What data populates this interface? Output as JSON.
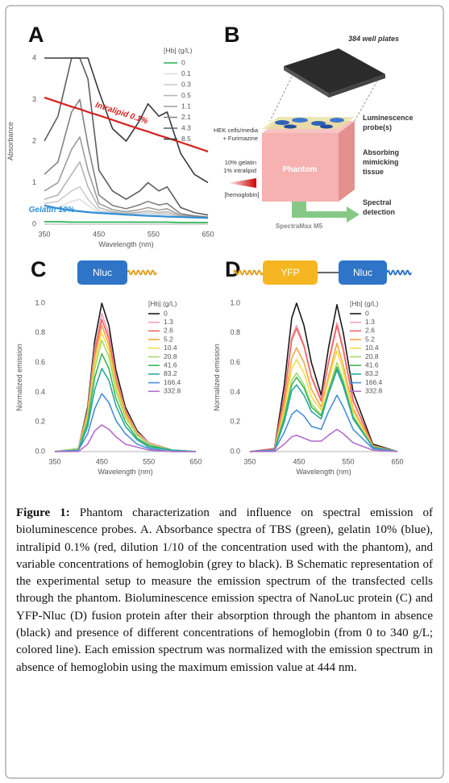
{
  "chart_data": [
    {
      "type": "line",
      "label": "A",
      "x_label": "Wavelength (nm)",
      "y_label": "Absorbance",
      "legend_title": "[Hb] (g/L)",
      "x": [
        350,
        375,
        400,
        415,
        430,
        450,
        475,
        500,
        525,
        540,
        560,
        575,
        600,
        625,
        650
      ],
      "xlim": [
        350,
        650
      ],
      "xticks": [
        350,
        450,
        550,
        650
      ],
      "ylim": [
        0,
        4
      ],
      "yticks": [
        0,
        1,
        2,
        3,
        4
      ],
      "series": [
        {
          "name": "0",
          "color": "#22b14c",
          "values": [
            0.06,
            0.06,
            0.05,
            0.05,
            0.05,
            0.05,
            0.05,
            0.05,
            0.05,
            0.05,
            0.05,
            0.05,
            0.04,
            0.04,
            0.04
          ]
        },
        {
          "name": "0.1",
          "color": "#e0e0e0",
          "values": [
            0.4,
            0.4,
            0.55,
            0.6,
            0.45,
            0.28,
            0.24,
            0.22,
            0.22,
            0.23,
            0.21,
            0.21,
            0.17,
            0.16,
            0.15
          ]
        },
        {
          "name": "0.3",
          "color": "#cccccc",
          "values": [
            0.5,
            0.55,
            0.8,
            0.9,
            0.6,
            0.32,
            0.27,
            0.24,
            0.25,
            0.27,
            0.24,
            0.25,
            0.18,
            0.16,
            0.15
          ]
        },
        {
          "name": "0.5",
          "color": "#b5b5b5",
          "values": [
            0.6,
            0.7,
            1.2,
            1.5,
            0.9,
            0.4,
            0.3,
            0.26,
            0.29,
            0.32,
            0.28,
            0.3,
            0.19,
            0.17,
            0.15
          ]
        },
        {
          "name": "1.1",
          "color": "#9c9c9c",
          "values": [
            0.8,
            1.0,
            1.8,
            2.1,
            1.3,
            0.5,
            0.35,
            0.3,
            0.35,
            0.4,
            0.34,
            0.37,
            0.21,
            0.18,
            0.16
          ]
        },
        {
          "name": "2.1",
          "color": "#838383",
          "values": [
            1.2,
            1.5,
            2.7,
            3.0,
            1.9,
            0.7,
            0.45,
            0.37,
            0.47,
            0.55,
            0.46,
            0.5,
            0.25,
            0.2,
            0.17
          ]
        },
        {
          "name": "4.3",
          "color": "#5e5e5e",
          "values": [
            2.0,
            2.6,
            4,
            4,
            3.5,
            1.3,
            0.8,
            0.6,
            0.8,
            1.0,
            0.8,
            0.9,
            0.4,
            0.28,
            0.22
          ]
        },
        {
          "name": "8.5",
          "color": "#3a3a3a",
          "values": [
            4,
            4,
            4,
            4,
            4,
            3.2,
            2.3,
            2.0,
            2.5,
            2.9,
            2.6,
            2.7,
            1.7,
            1.2,
            1.0
          ]
        }
      ],
      "reference_lines": [
        {
          "name": "Intralipid 0.1%",
          "color": "#d62020",
          "values": [
            3.05,
            2.94,
            2.83,
            2.77,
            2.7,
            2.62,
            2.51,
            2.4,
            2.29,
            2.23,
            2.14,
            2.08,
            1.97,
            1.86,
            1.75
          ]
        },
        {
          "name": "Gelatin 10%",
          "color": "#2f8fd8",
          "values": [
            0.45,
            0.38,
            0.33,
            0.31,
            0.29,
            0.27,
            0.25,
            0.23,
            0.21,
            0.2,
            0.19,
            0.18,
            0.17,
            0.16,
            0.15
          ]
        }
      ]
    },
    {
      "type": "line",
      "label": "C",
      "construct": [
        "Nluc"
      ],
      "x_label": "Wavelength (nm)",
      "y_label": "Normalized emission",
      "legend_title": "[Hb] (g/L)",
      "x": [
        350,
        400,
        420,
        435,
        450,
        465,
        480,
        500,
        525,
        550,
        600,
        650
      ],
      "xlim": [
        350,
        650
      ],
      "xticks": [
        350,
        450,
        550,
        650
      ],
      "ylim": [
        0,
        1
      ],
      "yticks": [
        {
          "value": 0,
          "label": "0.0"
        },
        0.2,
        0.4,
        0.6,
        0.8,
        {
          "value": 1,
          "label": "1.0"
        }
      ],
      "series": [
        {
          "name": "0",
          "color": "#1a1a1a",
          "values": [
            0,
            0.02,
            0.3,
            0.75,
            1.0,
            0.85,
            0.55,
            0.3,
            0.14,
            0.06,
            0.01,
            0
          ]
        },
        {
          "name": "1.3",
          "color": "#f4a0b8",
          "values": [
            0,
            0.02,
            0.28,
            0.7,
            0.93,
            0.79,
            0.51,
            0.28,
            0.13,
            0.06,
            0.01,
            0
          ]
        },
        {
          "name": "2.6",
          "color": "#f06262",
          "values": [
            0,
            0.02,
            0.27,
            0.67,
            0.89,
            0.76,
            0.49,
            0.27,
            0.12,
            0.05,
            0.01,
            0
          ]
        },
        {
          "name": "5.2",
          "color": "#f5a742",
          "values": [
            0,
            0.02,
            0.26,
            0.64,
            0.85,
            0.72,
            0.47,
            0.26,
            0.12,
            0.05,
            0.01,
            0
          ]
        },
        {
          "name": "10.4",
          "color": "#f2dc4a",
          "values": [
            0,
            0.02,
            0.24,
            0.6,
            0.8,
            0.68,
            0.44,
            0.24,
            0.11,
            0.05,
            0.01,
            0
          ]
        },
        {
          "name": "20.8",
          "color": "#a8d86a",
          "values": [
            0,
            0.02,
            0.23,
            0.56,
            0.75,
            0.64,
            0.41,
            0.23,
            0.11,
            0.05,
            0.01,
            0
          ]
        },
        {
          "name": "41.6",
          "color": "#3fb55a",
          "values": [
            0,
            0.01,
            0.2,
            0.5,
            0.66,
            0.56,
            0.36,
            0.2,
            0.09,
            0.04,
            0.01,
            0
          ]
        },
        {
          "name": "83.2",
          "color": "#2aa7a0",
          "values": [
            0,
            0.01,
            0.17,
            0.42,
            0.56,
            0.48,
            0.31,
            0.17,
            0.08,
            0.03,
            0.01,
            0
          ]
        },
        {
          "name": "166.4",
          "color": "#4a8fd6",
          "values": [
            0,
            0.01,
            0.12,
            0.29,
            0.39,
            0.33,
            0.21,
            0.12,
            0.05,
            0.02,
            0,
            0
          ]
        },
        {
          "name": "332.8",
          "color": "#b46fc8",
          "values": [
            0,
            0,
            0.05,
            0.14,
            0.18,
            0.15,
            0.1,
            0.05,
            0.03,
            0.01,
            0,
            0
          ]
        }
      ]
    },
    {
      "type": "line",
      "label": "D",
      "construct": [
        "YFP",
        "Nluc"
      ],
      "x_label": "Wavelength (nm)",
      "y_label": "Normalized emission",
      "legend_title": "[Hb] (g/L)",
      "x": [
        350,
        400,
        420,
        435,
        445,
        460,
        475,
        495,
        510,
        527,
        540,
        560,
        600,
        650
      ],
      "xlim": [
        350,
        650
      ],
      "xticks": [
        350,
        450,
        550,
        650
      ],
      "ylim": [
        0,
        1
      ],
      "yticks": [
        {
          "value": 0,
          "label": "0.0"
        },
        0.2,
        0.4,
        0.6,
        0.8,
        {
          "value": 1,
          "label": "1.0"
        }
      ],
      "series": [
        {
          "name": "0",
          "color": "#1a1a1a",
          "values": [
            0,
            0.02,
            0.45,
            0.9,
            1.0,
            0.85,
            0.6,
            0.38,
            0.7,
            0.99,
            0.8,
            0.4,
            0.05,
            0
          ]
        },
        {
          "name": "1.3",
          "color": "#f4a0b8",
          "values": [
            0,
            0.02,
            0.38,
            0.77,
            0.85,
            0.72,
            0.51,
            0.35,
            0.61,
            0.87,
            0.7,
            0.35,
            0.04,
            0
          ]
        },
        {
          "name": "2.6",
          "color": "#f06262",
          "values": [
            0,
            0.02,
            0.37,
            0.75,
            0.83,
            0.71,
            0.5,
            0.34,
            0.6,
            0.85,
            0.68,
            0.34,
            0.04,
            0
          ]
        },
        {
          "name": "5.2",
          "color": "#f5a742",
          "values": [
            0,
            0.01,
            0.32,
            0.63,
            0.7,
            0.6,
            0.42,
            0.3,
            0.51,
            0.73,
            0.58,
            0.29,
            0.04,
            0
          ]
        },
        {
          "name": "10.4",
          "color": "#f2dc4a",
          "values": [
            0,
            0.01,
            0.28,
            0.56,
            0.62,
            0.53,
            0.37,
            0.28,
            0.48,
            0.68,
            0.54,
            0.27,
            0.03,
            0
          ]
        },
        {
          "name": "20.8",
          "color": "#a8d86a",
          "values": [
            0,
            0.01,
            0.24,
            0.48,
            0.53,
            0.45,
            0.32,
            0.25,
            0.42,
            0.6,
            0.48,
            0.24,
            0.03,
            0
          ]
        },
        {
          "name": "41.6",
          "color": "#3fb55a",
          "values": [
            0,
            0.01,
            0.23,
            0.45,
            0.5,
            0.43,
            0.3,
            0.24,
            0.4,
            0.57,
            0.46,
            0.23,
            0.03,
            0
          ]
        },
        {
          "name": "83.2",
          "color": "#2aa7a0",
          "values": [
            0,
            0.01,
            0.2,
            0.41,
            0.45,
            0.38,
            0.27,
            0.22,
            0.39,
            0.55,
            0.44,
            0.22,
            0.03,
            0
          ]
        },
        {
          "name": "166.4",
          "color": "#4a8fd6",
          "values": [
            0,
            0.01,
            0.13,
            0.25,
            0.28,
            0.24,
            0.17,
            0.15,
            0.27,
            0.38,
            0.3,
            0.15,
            0.02,
            0
          ]
        },
        {
          "name": "332.8",
          "color": "#b46fc8",
          "values": [
            0,
            0,
            0.05,
            0.1,
            0.11,
            0.09,
            0.07,
            0.07,
            0.11,
            0.15,
            0.12,
            0.06,
            0.01,
            0
          ]
        }
      ]
    }
  ],
  "diagram": {
    "label": "B",
    "plate": "384 well plates",
    "probe": [
      "Luminescence",
      "probe(s)"
    ],
    "cells": [
      "HEK cells/media",
      "+ Furimazine"
    ],
    "tissue": [
      "Absorbing",
      "mimicking",
      "tissue"
    ],
    "phantom_mix": [
      "10% gelatin",
      "1% intralipid"
    ],
    "gradient": "[hemoglobin]",
    "phantom": "Phantom",
    "detection": [
      "Spectral",
      "detection"
    ],
    "reader": "SpectraMax M5"
  },
  "caption": {
    "label": "Figure 1:",
    "text": "Phantom characterization and influence on spectral emission of bioluminescence probes. A. Absorbance spectra of TBS (green), gelatin 10% (blue), intralipid 0.1% (red, dilution 1/10 of the concentration used with the phantom), and variable concentrations of hemoglobin (grey to black). B Schematic representation of the experimental setup to measure the emission spectrum of the transfected cells through the phantom. Bioluminescence emission spectra of NanoLuc protein (C) and YFP-Nluc (D) fusion protein after their absorption through the phantom in absence (black) and presence of different concentrations of hemoglobin (from 0 to 340 g/L; colored line). Each emission spectrum was normalized with the emission spectrum in absence of hemoglobin using the maximum emission value at 444 nm."
  }
}
